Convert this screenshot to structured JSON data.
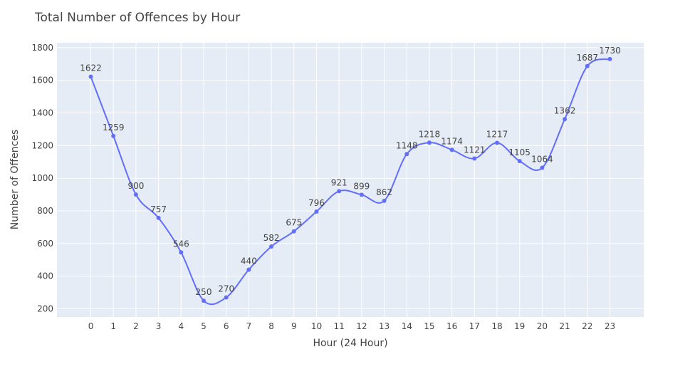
{
  "chart_data": {
    "type": "line",
    "title": "Total Number of Offences by Hour",
    "xlabel": "Hour (24 Hour)",
    "ylabel": "Number of Offences",
    "x": [
      0,
      1,
      2,
      3,
      4,
      5,
      6,
      7,
      8,
      9,
      10,
      11,
      12,
      13,
      14,
      15,
      16,
      17,
      18,
      19,
      20,
      21,
      22,
      23
    ],
    "values": [
      1622,
      1259,
      900,
      757,
      546,
      250,
      270,
      440,
      582,
      675,
      796,
      921,
      899,
      862,
      1148,
      1218,
      1174,
      1121,
      1217,
      1105,
      1064,
      1362,
      1687,
      1730
    ],
    "xlim": [
      -1.5,
      24.5
    ],
    "ylim": [
      150,
      1830
    ],
    "y_ticks": [
      200,
      400,
      600,
      800,
      1000,
      1200,
      1400,
      1600,
      1800
    ],
    "x_ticks": [
      0,
      1,
      2,
      3,
      4,
      5,
      6,
      7,
      8,
      9,
      10,
      11,
      12,
      13,
      14,
      15,
      16,
      17,
      18,
      19,
      20,
      21,
      22,
      23
    ],
    "line_shape": "spline",
    "grid": true,
    "colors": {
      "line": "#636efa",
      "plot_bg": "#e5ecf6",
      "grid": "#ffffff"
    }
  }
}
